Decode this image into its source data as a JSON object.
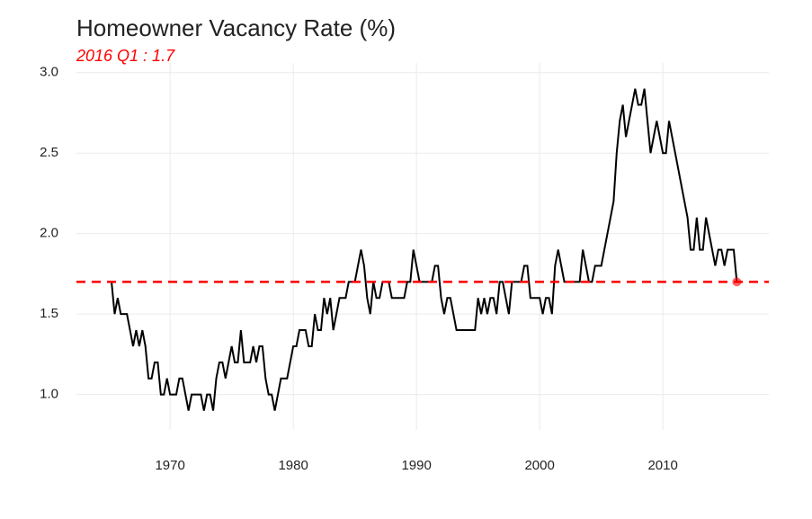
{
  "chart_data": {
    "type": "line",
    "title": "Homeowner Vacancy Rate (%)",
    "subtitle": "2016 Q1 : 1.7",
    "reference_line": 1.7,
    "color": "#000000",
    "reference_color": "#ff0000",
    "grid": true,
    "xlim": [
      1962.4,
      2018.6
    ],
    "xticks": [
      1970,
      1980,
      1990,
      2000,
      2010
    ],
    "ylim": [
      0.78,
      3.06
    ],
    "yticks": [
      {
        "value": 1.0,
        "label": "1.0"
      },
      {
        "value": 1.5,
        "label": "1.5"
      },
      {
        "value": 2.0,
        "label": "2.0"
      },
      {
        "value": 2.5,
        "label": "2.5"
      },
      {
        "value": 3.0,
        "label": "3.0"
      }
    ],
    "x": [
      1965,
      1965.25,
      1965.5,
      1965.75,
      1966,
      1966.25,
      1966.5,
      1966.75,
      1967,
      1967.25,
      1967.5,
      1967.75,
      1968,
      1968.25,
      1968.5,
      1968.75,
      1969,
      1969.25,
      1969.5,
      1969.75,
      1970,
      1970.25,
      1970.5,
      1970.75,
      1971,
      1971.25,
      1971.5,
      1971.75,
      1972,
      1972.25,
      1972.5,
      1972.75,
      1973,
      1973.25,
      1973.5,
      1973.75,
      1974,
      1974.25,
      1974.5,
      1974.75,
      1975,
      1975.25,
      1975.5,
      1975.75,
      1976,
      1976.25,
      1976.5,
      1976.75,
      1977,
      1977.25,
      1977.5,
      1977.75,
      1978,
      1978.25,
      1978.5,
      1978.75,
      1979,
      1979.25,
      1979.5,
      1979.75,
      1980,
      1980.25,
      1980.5,
      1980.75,
      1981,
      1981.25,
      1981.5,
      1981.75,
      1982,
      1982.25,
      1982.5,
      1982.75,
      1983,
      1983.25,
      1983.5,
      1983.75,
      1984,
      1984.25,
      1984.5,
      1984.75,
      1985,
      1985.25,
      1985.5,
      1985.75,
      1986,
      1986.25,
      1986.5,
      1986.75,
      1987,
      1987.25,
      1987.5,
      1987.75,
      1988,
      1988.25,
      1988.5,
      1988.75,
      1989,
      1989.25,
      1989.5,
      1989.75,
      1990,
      1990.25,
      1990.5,
      1990.75,
      1991,
      1991.25,
      1991.5,
      1991.75,
      1992,
      1992.25,
      1992.5,
      1992.75,
      1993,
      1993.25,
      1993.5,
      1993.75,
      1994,
      1994.25,
      1994.5,
      1994.75,
      1995,
      1995.25,
      1995.5,
      1995.75,
      1996,
      1996.25,
      1996.5,
      1996.75,
      1997,
      1997.25,
      1997.5,
      1997.75,
      1998,
      1998.25,
      1998.5,
      1998.75,
      1999,
      1999.25,
      1999.5,
      1999.75,
      2000,
      2000.25,
      2000.5,
      2000.75,
      2001,
      2001.25,
      2001.5,
      2001.75,
      2002,
      2002.25,
      2002.5,
      2002.75,
      2003,
      2003.25,
      2003.5,
      2003.75,
      2004,
      2004.25,
      2004.5,
      2004.75,
      2005,
      2005.25,
      2005.5,
      2005.75,
      2006,
      2006.25,
      2006.5,
      2006.75,
      2007,
      2007.25,
      2007.5,
      2007.75,
      2008,
      2008.25,
      2008.5,
      2008.75,
      2009,
      2009.25,
      2009.5,
      2009.75,
      2010,
      2010.25,
      2010.5,
      2010.75,
      2011,
      2011.25,
      2011.5,
      2011.75,
      2012,
      2012.25,
      2012.5,
      2012.75,
      2013,
      2013.25,
      2013.5,
      2013.75,
      2014,
      2014.25,
      2014.5,
      2014.75,
      2015,
      2015.25,
      2015.5,
      2015.75,
      2016
    ],
    "values": [
      1.7,
      1.7,
      1.5,
      1.6,
      1.5,
      1.5,
      1.5,
      1.4,
      1.3,
      1.4,
      1.3,
      1.4,
      1.3,
      1.1,
      1.1,
      1.2,
      1.2,
      1.0,
      1.0,
      1.1,
      1.0,
      1.0,
      1.0,
      1.1,
      1.1,
      1.0,
      0.9,
      1.0,
      1.0,
      1.0,
      1.0,
      0.9,
      1.0,
      1.0,
      0.9,
      1.1,
      1.2,
      1.2,
      1.1,
      1.2,
      1.3,
      1.2,
      1.2,
      1.4,
      1.2,
      1.2,
      1.2,
      1.3,
      1.2,
      1.3,
      1.3,
      1.1,
      1.0,
      1.0,
      0.9,
      1.0,
      1.1,
      1.1,
      1.1,
      1.2,
      1.3,
      1.3,
      1.4,
      1.4,
      1.4,
      1.3,
      1.3,
      1.5,
      1.4,
      1.4,
      1.6,
      1.5,
      1.6,
      1.4,
      1.5,
      1.6,
      1.6,
      1.6,
      1.7,
      1.7,
      1.7,
      1.8,
      1.9,
      1.8,
      1.6,
      1.5,
      1.7,
      1.6,
      1.6,
      1.7,
      1.7,
      1.7,
      1.6,
      1.6,
      1.6,
      1.6,
      1.6,
      1.7,
      1.7,
      1.9,
      1.8,
      1.7,
      1.7,
      1.7,
      1.7,
      1.7,
      1.8,
      1.8,
      1.6,
      1.5,
      1.6,
      1.6,
      1.5,
      1.4,
      1.4,
      1.4,
      1.4,
      1.4,
      1.4,
      1.4,
      1.6,
      1.5,
      1.6,
      1.5,
      1.6,
      1.6,
      1.5,
      1.7,
      1.7,
      1.6,
      1.5,
      1.7,
      1.7,
      1.7,
      1.7,
      1.8,
      1.8,
      1.6,
      1.6,
      1.6,
      1.6,
      1.5,
      1.6,
      1.6,
      1.5,
      1.8,
      1.9,
      1.8,
      1.7,
      1.7,
      1.7,
      1.7,
      1.7,
      1.7,
      1.9,
      1.8,
      1.7,
      1.7,
      1.8,
      1.8,
      1.8,
      1.9,
      2.0,
      2.1,
      2.2,
      2.5,
      2.7,
      2.8,
      2.6,
      2.7,
      2.8,
      2.9,
      2.8,
      2.8,
      2.9,
      2.7,
      2.5,
      2.6,
      2.7,
      2.6,
      2.5,
      2.5,
      2.7,
      2.6,
      2.5,
      2.4,
      2.3,
      2.2,
      2.1,
      1.9,
      1.9,
      2.1,
      1.9,
      1.9,
      2.1,
      2.0,
      1.9,
      1.8,
      1.9,
      1.9,
      1.8,
      1.9,
      1.9,
      1.9,
      1.7
    ]
  }
}
